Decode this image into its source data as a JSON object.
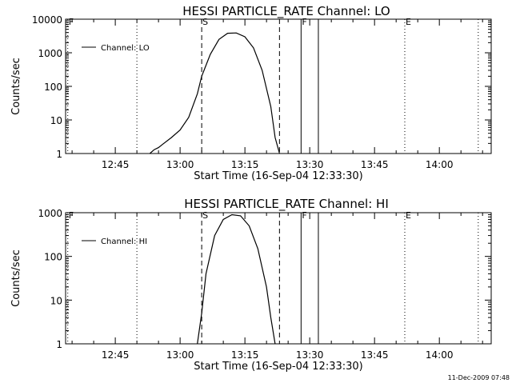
{
  "footer": {
    "timestamp": "11-Dec-2009 07:48"
  },
  "chart_data": [
    {
      "type": "line",
      "title": "HESSI PARTICLE_RATE Channel: LO",
      "xlabel": "Start Time (16-Sep-04 12:33:30)",
      "ylabel": "Counts/sec",
      "yscale": "log",
      "ylim": [
        1,
        10000
      ],
      "xlim": [
        "12:33:30",
        "14:12:00"
      ],
      "x_ticks": [
        "12:45",
        "13:00",
        "13:15",
        "13:30",
        "13:45",
        "14:00"
      ],
      "y_ticks": [
        "1",
        "10",
        "100",
        "1000",
        "10000"
      ],
      "legend": {
        "label": "Channel: LO",
        "position": "top-left"
      },
      "markers": [
        {
          "label": "F",
          "time": "12:34",
          "style": "dotted"
        },
        {
          "label": "",
          "time": "12:50",
          "style": "dotted"
        },
        {
          "label": "S",
          "time": "13:05",
          "style": "dashed"
        },
        {
          "label": "",
          "time": "13:23",
          "style": "dashed"
        },
        {
          "label": "F",
          "time": "13:28",
          "style": "solid"
        },
        {
          "label": "",
          "time": "13:32",
          "style": "solid"
        },
        {
          "label": "E",
          "time": "13:52",
          "style": "dotted"
        },
        {
          "label": "",
          "time": "14:09",
          "style": "dotted"
        }
      ],
      "series": [
        {
          "x": [
            "12:53",
            "12:54",
            "12:55",
            "12:56",
            "12:58",
            "13:00",
            "13:02",
            "13:04",
            "13:05",
            "13:07",
            "13:09",
            "13:11",
            "13:13",
            "13:15",
            "13:17",
            "13:19",
            "13:21",
            "13:22",
            "13:23"
          ],
          "y": [
            1,
            1.3,
            1.5,
            1.9,
            3,
            5,
            12,
            60,
            200,
            900,
            2500,
            3800,
            3900,
            3000,
            1400,
            300,
            25,
            3,
            1
          ]
        }
      ]
    },
    {
      "type": "line",
      "title": "HESSI PARTICLE_RATE Channel: HI",
      "xlabel": "Start Time (16-Sep-04 12:33:30)",
      "ylabel": "Counts/sec",
      "yscale": "log",
      "ylim": [
        1,
        1000
      ],
      "xlim": [
        "12:33:30",
        "14:12:00"
      ],
      "x_ticks": [
        "12:45",
        "13:00",
        "13:15",
        "13:30",
        "13:45",
        "14:00"
      ],
      "y_ticks": [
        "1",
        "10",
        "100",
        "1000"
      ],
      "legend": {
        "label": "Channel: HI",
        "position": "top-left"
      },
      "markers": [
        {
          "label": "F",
          "time": "12:34",
          "style": "dotted"
        },
        {
          "label": "",
          "time": "12:50",
          "style": "dotted"
        },
        {
          "label": "S",
          "time": "13:05",
          "style": "dashed"
        },
        {
          "label": "",
          "time": "13:23",
          "style": "dashed"
        },
        {
          "label": "F",
          "time": "13:28",
          "style": "solid"
        },
        {
          "label": "",
          "time": "13:32",
          "style": "solid"
        },
        {
          "label": "E",
          "time": "13:52",
          "style": "dotted"
        },
        {
          "label": "",
          "time": "14:09",
          "style": "dotted"
        }
      ],
      "series": [
        {
          "x": [
            "13:04",
            "13:05",
            "13:06",
            "13:08",
            "13:10",
            "13:12",
            "13:14",
            "13:16",
            "13:18",
            "13:20",
            "13:21",
            "13:22"
          ],
          "y": [
            1,
            5,
            40,
            300,
            700,
            900,
            850,
            500,
            150,
            20,
            4,
            1
          ]
        }
      ]
    }
  ]
}
